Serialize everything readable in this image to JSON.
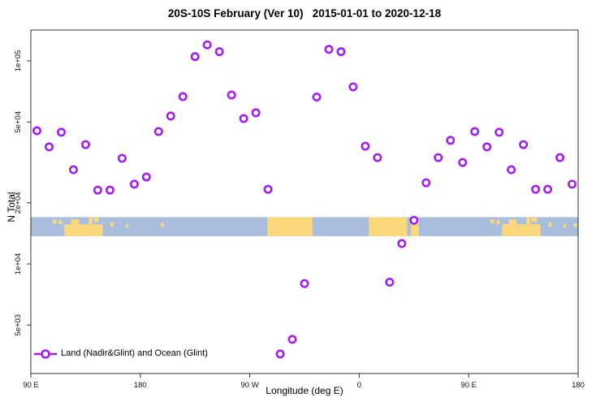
{
  "chart_data": {
    "type": "scatter",
    "title": "20S-10S February (Ver 10)   2015-01-01 to 2020-12-18",
    "xlabel": "Longitude (deg E)",
    "ylabel": "N Total",
    "x_axis": {
      "range_degE": [
        90,
        540
      ],
      "ticks_degE": [
        90,
        180,
        270,
        360,
        450,
        540
      ],
      "tick_labels": [
        "90 E",
        "180",
        "90 W",
        "0",
        "90 E",
        "180"
      ],
      "note": "longitude wraps eastward from 90E around the globe to 180 again"
    },
    "y_axis": {
      "scale": "log10",
      "ticks": [
        100000,
        50000,
        20000,
        10000,
        5000
      ],
      "tick_labels": [
        "1e+05",
        "5e+04",
        "2e+04",
        "1e+04",
        "5e+03"
      ],
      "ylim": [
        2900,
        142000
      ]
    },
    "grid": false,
    "legend_position": "bottom-left-inside",
    "series": [
      {
        "name": "Land (Nadir&Glint) and Ocean (Glint)",
        "marker": "open-circle",
        "color": "#A020F0",
        "points": [
          {
            "lon_degE": 95,
            "n": 45300
          },
          {
            "lon_degE": 105,
            "n": 37700
          },
          {
            "lon_degE": 115,
            "n": 44500
          },
          {
            "lon_degE": 125,
            "n": 29100
          },
          {
            "lon_degE": 135,
            "n": 38700
          },
          {
            "lon_degE": 145,
            "n": 23100
          },
          {
            "lon_degE": 155,
            "n": 23100
          },
          {
            "lon_degE": 165,
            "n": 33100
          },
          {
            "lon_degE": 175,
            "n": 24700
          },
          {
            "lon_degE": 185,
            "n": 26800
          },
          {
            "lon_degE": 195,
            "n": 44900
          },
          {
            "lon_degE": 205,
            "n": 53500
          },
          {
            "lon_degE": 215,
            "n": 66700
          },
          {
            "lon_degE": 225,
            "n": 105000
          },
          {
            "lon_degE": 235,
            "n": 120000
          },
          {
            "lon_degE": 245,
            "n": 111000
          },
          {
            "lon_degE": 255,
            "n": 67900
          },
          {
            "lon_degE": 265,
            "n": 52000
          },
          {
            "lon_degE": 275,
            "n": 55500
          },
          {
            "lon_degE": 285,
            "n": 23300
          },
          {
            "lon_degE": 295,
            "n": 3600
          },
          {
            "lon_degE": 305,
            "n": 4250
          },
          {
            "lon_degE": 315,
            "n": 8000
          },
          {
            "lon_degE": 325,
            "n": 66400
          },
          {
            "lon_degE": 335,
            "n": 114000
          },
          {
            "lon_degE": 345,
            "n": 111000
          },
          {
            "lon_degE": 355,
            "n": 74500
          },
          {
            "lon_degE": 365,
            "n": 38000
          },
          {
            "lon_degE": 375,
            "n": 33400
          },
          {
            "lon_degE": 385,
            "n": 8130
          },
          {
            "lon_degE": 395,
            "n": 12600
          },
          {
            "lon_degE": 405,
            "n": 16400
          },
          {
            "lon_degE": 415,
            "n": 25100
          },
          {
            "lon_degE": 425,
            "n": 33400
          },
          {
            "lon_degE": 435,
            "n": 40600
          },
          {
            "lon_degE": 445,
            "n": 31600
          },
          {
            "lon_degE": 455,
            "n": 44900
          },
          {
            "lon_degE": 465,
            "n": 37700
          },
          {
            "lon_degE": 475,
            "n": 44500
          },
          {
            "lon_degE": 485,
            "n": 29100
          },
          {
            "lon_degE": 495,
            "n": 38700
          },
          {
            "lon_degE": 505,
            "n": 23300
          },
          {
            "lon_degE": 515,
            "n": 23300
          },
          {
            "lon_degE": 525,
            "n": 33400
          },
          {
            "lon_degE": 535,
            "n": 24700
          }
        ]
      }
    ],
    "map_band": {
      "description": "world map strip of the 20S-10S latitude band drawn across the plot",
      "ocean_color": "#A9BEDD",
      "land_color": "#FCD87D",
      "value_span": [
        13700,
        17000
      ],
      "land_segments_degE": [
        {
          "lon1": 108.0,
          "lon2": 111.0,
          "f1": 0.12,
          "f2": 0.34
        },
        {
          "lon1": 113.0,
          "lon2": 115.5,
          "f1": 0.16,
          "f2": 0.38
        },
        {
          "lon1": 117.5,
          "lon2": 149.0,
          "f1": 0.38,
          "f2": 1.0
        },
        {
          "lon1": 123.0,
          "lon2": 129.5,
          "f1": 0.12,
          "f2": 0.38
        },
        {
          "lon1": 137.5,
          "lon2": 140.5,
          "f1": 0.0,
          "f2": 0.38
        },
        {
          "lon1": 141.5,
          "lon2": 146.0,
          "f1": 0.04,
          "f2": 0.26
        },
        {
          "lon1": 155.5,
          "lon2": 158.0,
          "f1": 0.28,
          "f2": 0.5
        },
        {
          "lon1": 168.0,
          "lon2": 170.0,
          "f1": 0.35,
          "f2": 0.55
        },
        {
          "lon1": 197.0,
          "lon2": 199.5,
          "f1": 0.32,
          "f2": 0.52
        },
        {
          "lon1": 284.5,
          "lon2": 321.5,
          "f1": 0.0,
          "f2": 1.0
        },
        {
          "lon1": 368.0,
          "lon2": 399.5,
          "f1": 0.0,
          "f2": 1.0
        },
        {
          "lon1": 402.5,
          "lon2": 409.0,
          "f1": 0.12,
          "f2": 1.0
        },
        {
          "lon1": 468.0,
          "lon2": 471.0,
          "f1": 0.12,
          "f2": 0.34
        },
        {
          "lon1": 473.0,
          "lon2": 475.5,
          "f1": 0.16,
          "f2": 0.38
        },
        {
          "lon1": 477.5,
          "lon2": 509.0,
          "f1": 0.38,
          "f2": 1.0
        },
        {
          "lon1": 483.0,
          "lon2": 489.5,
          "f1": 0.12,
          "f2": 0.38
        },
        {
          "lon1": 497.5,
          "lon2": 500.5,
          "f1": 0.0,
          "f2": 0.38
        },
        {
          "lon1": 501.5,
          "lon2": 506.0,
          "f1": 0.04,
          "f2": 0.26
        },
        {
          "lon1": 515.5,
          "lon2": 518.0,
          "f1": 0.28,
          "f2": 0.5
        },
        {
          "lon1": 528.0,
          "lon2": 530.0,
          "f1": 0.35,
          "f2": 0.55
        },
        {
          "lon1": 536.5,
          "lon2": 539.0,
          "f1": 0.32,
          "f2": 0.52
        }
      ]
    }
  },
  "legend": {
    "label": "Land (Nadir&Glint) and Ocean (Glint)"
  }
}
